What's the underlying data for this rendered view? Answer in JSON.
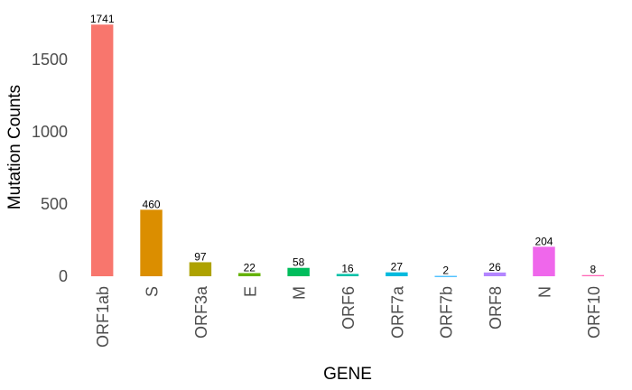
{
  "chart_data": {
    "type": "bar",
    "title": "",
    "xlabel": "GENE",
    "ylabel": "Mutation Counts",
    "ylim": [
      0,
      1780
    ],
    "yticks": [
      0,
      500,
      1000,
      1500
    ],
    "grid": false,
    "legend": "none",
    "categories": [
      "ORF1ab",
      "S",
      "ORF3a",
      "E",
      "M",
      "ORF6",
      "ORF7a",
      "ORF7b",
      "ORF8",
      "N",
      "ORF10"
    ],
    "values": [
      1741,
      460,
      97,
      22,
      58,
      16,
      27,
      2,
      26,
      204,
      8
    ],
    "colors": [
      "#F8766D",
      "#DB8E00",
      "#AEA200",
      "#64B200",
      "#00BD5C",
      "#00C1A7",
      "#00BADE",
      "#00A6FF",
      "#B385FF",
      "#EF67EB",
      "#FF63B6"
    ]
  }
}
